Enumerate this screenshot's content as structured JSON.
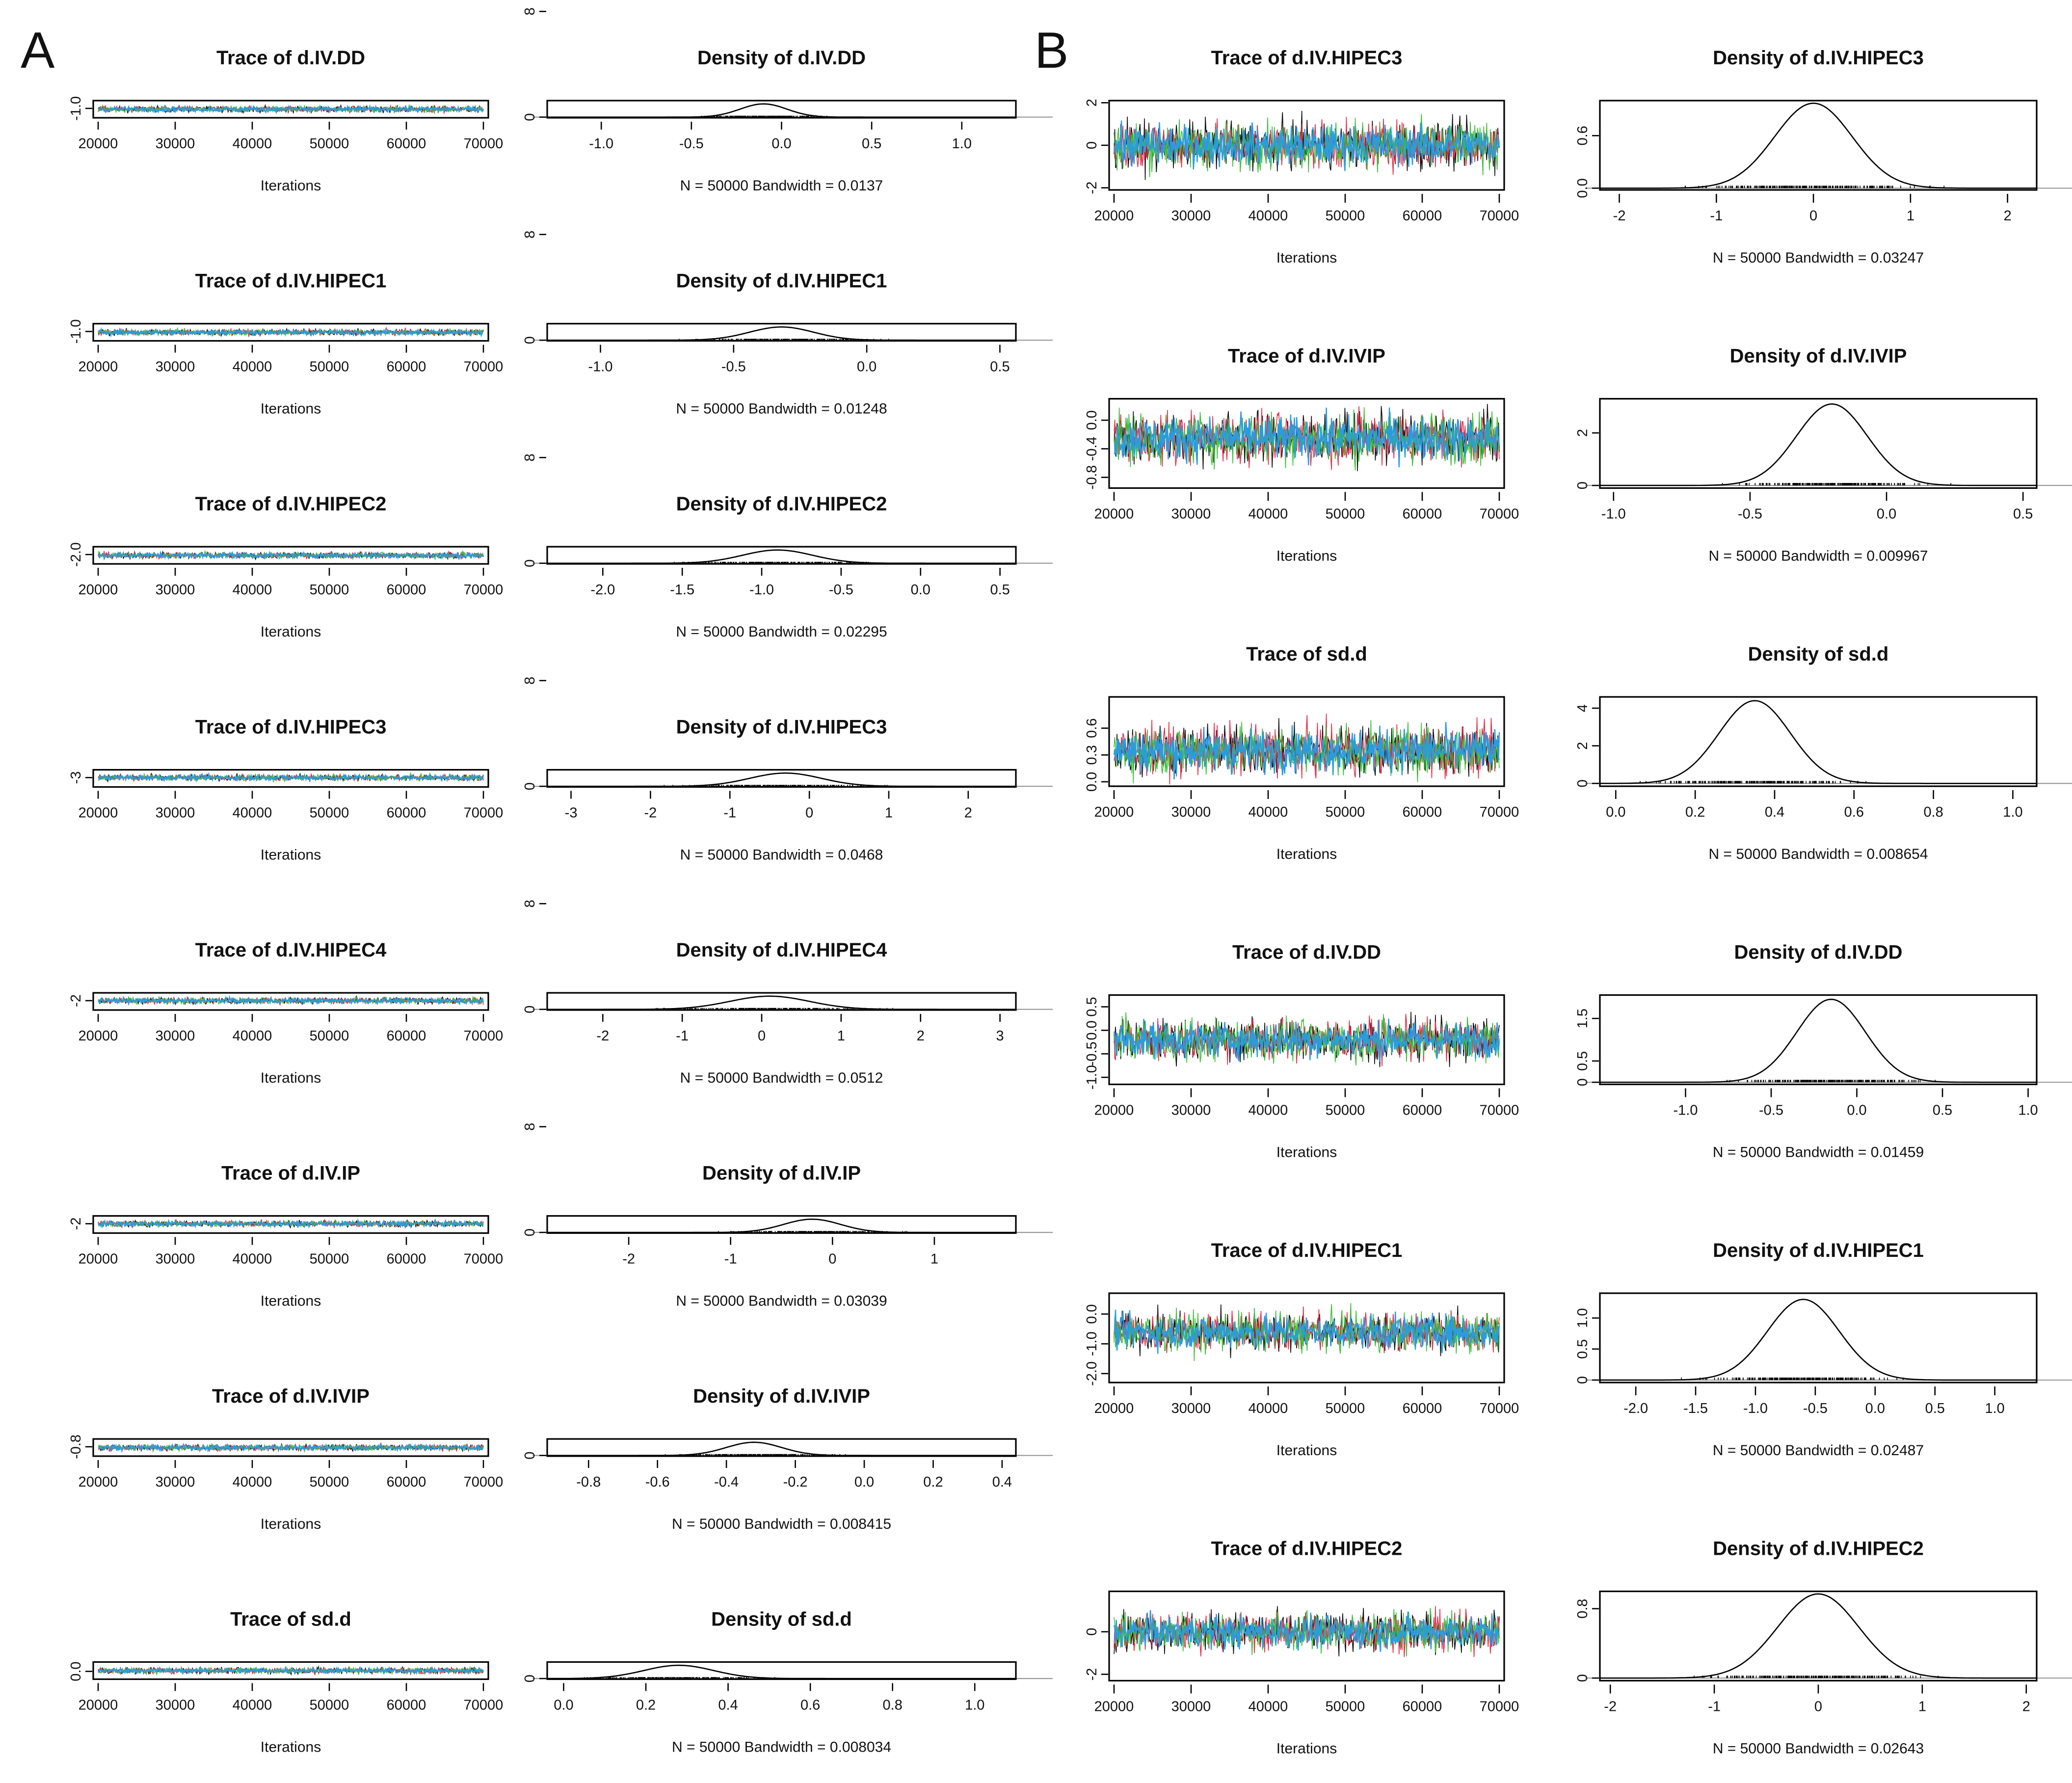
{
  "figure": {
    "panel_labels": [
      "A",
      "B"
    ],
    "x_axis_label_trace": "Iterations",
    "colors": {
      "chain_blue": "#2b9be0",
      "chain_black": "#111111",
      "chain_red": "#e0304a",
      "chain_green": "#3cbf3c",
      "baseline": "#9a9a9a"
    }
  },
  "chart_data": [
    {
      "panel": "A",
      "type": "line",
      "kind": "trace",
      "title": "Trace of d.IV.DD",
      "xlabel": "Iterations",
      "x_ticks": [
        "20000",
        "30000",
        "40000",
        "50000",
        "60000",
        "70000"
      ],
      "x_range": [
        20000,
        70000
      ],
      "y_ticks": [
        "-1.0"
      ],
      "y_range": [
        -1.6,
        -0.5
      ],
      "mean": -1.05,
      "sd": 0.1
    },
    {
      "panel": "A",
      "type": "line",
      "kind": "density",
      "title": "Density of d.IV.DD",
      "summary": "N = 50000   Bandwidth = 0.0137",
      "x_ticks": [
        "-1.0",
        "-0.5",
        "0.0",
        "0.5",
        "1.0"
      ],
      "x_range": [
        -1.3,
        1.3
      ],
      "y_ticks": [
        "0",
        "8"
      ],
      "peak_x": -0.1,
      "sd": 0.13
    },
    {
      "panel": "A",
      "type": "line",
      "kind": "trace",
      "title": "Trace of d.IV.HIPEC1",
      "xlabel": "Iterations",
      "x_ticks": [
        "20000",
        "30000",
        "40000",
        "50000",
        "60000",
        "70000"
      ],
      "x_range": [
        20000,
        70000
      ],
      "y_ticks": [
        "-1.0"
      ],
      "y_range": [
        -1.6,
        -0.5
      ],
      "mean": -1.05,
      "sd": 0.1
    },
    {
      "panel": "A",
      "type": "line",
      "kind": "density",
      "title": "Density of d.IV.HIPEC1",
      "summary": "N = 50000   Bandwidth = 0.01248",
      "x_ticks": [
        "-1.0",
        "-0.5",
        "0.0",
        "0.5"
      ],
      "x_range": [
        -1.2,
        0.56
      ],
      "y_ticks": [
        "0",
        "8"
      ],
      "peak_x": -0.32,
      "sd": 0.12
    },
    {
      "panel": "A",
      "type": "line",
      "kind": "trace",
      "title": "Trace of d.IV.HIPEC2",
      "xlabel": "Iterations",
      "x_ticks": [
        "20000",
        "30000",
        "40000",
        "50000",
        "60000",
        "70000"
      ],
      "x_range": [
        20000,
        70000
      ],
      "y_ticks": [
        "-2.0"
      ],
      "y_range": [
        -2.6,
        -1.5
      ],
      "mean": -2.05,
      "sd": 0.1
    },
    {
      "panel": "A",
      "type": "line",
      "kind": "density",
      "title": "Density of d.IV.HIPEC2",
      "summary": "N = 50000   Bandwidth = 0.02295",
      "x_ticks": [
        "-2.0",
        "-1.5",
        "-1.0",
        "-0.5",
        "0.0",
        "0.5"
      ],
      "x_range": [
        -2.35,
        0.6
      ],
      "y_ticks": [
        "0",
        "8"
      ],
      "peak_x": -0.9,
      "sd": 0.22
    },
    {
      "panel": "A",
      "type": "line",
      "kind": "trace",
      "title": "Trace of d.IV.HIPEC3",
      "xlabel": "Iterations",
      "x_ticks": [
        "20000",
        "30000",
        "40000",
        "50000",
        "60000",
        "70000"
      ],
      "x_range": [
        20000,
        70000
      ],
      "y_ticks": [
        "-3"
      ],
      "y_range": [
        -3.6,
        -2.5
      ],
      "mean": -3.0,
      "sd": 0.1
    },
    {
      "panel": "A",
      "type": "line",
      "kind": "density",
      "title": "Density of d.IV.HIPEC3",
      "summary": "N = 50000   Bandwidth = 0.0468",
      "x_ticks": [
        "-3",
        "-2",
        "-1",
        "0",
        "1",
        "2"
      ],
      "x_range": [
        -3.3,
        2.6
      ],
      "y_ticks": [
        "0",
        "8"
      ],
      "peak_x": -0.3,
      "sd": 0.45
    },
    {
      "panel": "A",
      "type": "line",
      "kind": "trace",
      "title": "Trace of d.IV.HIPEC4",
      "xlabel": "Iterations",
      "x_ticks": [
        "20000",
        "30000",
        "40000",
        "50000",
        "60000",
        "70000"
      ],
      "x_range": [
        20000,
        70000
      ],
      "y_ticks": [
        "-2"
      ],
      "y_range": [
        -2.6,
        -1.5
      ],
      "mean": -2.0,
      "sd": 0.1
    },
    {
      "panel": "A",
      "type": "line",
      "kind": "density",
      "title": "Density of d.IV.HIPEC4",
      "summary": "N = 50000   Bandwidth = 0.0512",
      "x_ticks": [
        "-2",
        "-1",
        "0",
        "1",
        "2",
        "3"
      ],
      "x_range": [
        -2.7,
        3.2
      ],
      "y_ticks": [
        "0",
        "8"
      ],
      "peak_x": 0.1,
      "sd": 0.5
    },
    {
      "panel": "A",
      "type": "line",
      "kind": "trace",
      "title": "Trace of d.IV.IP",
      "xlabel": "Iterations",
      "x_ticks": [
        "20000",
        "30000",
        "40000",
        "50000",
        "60000",
        "70000"
      ],
      "x_range": [
        20000,
        70000
      ],
      "y_ticks": [
        "-2"
      ],
      "y_range": [
        -2.6,
        -1.5
      ],
      "mean": -2.0,
      "sd": 0.1
    },
    {
      "panel": "A",
      "type": "line",
      "kind": "density",
      "title": "Density of d.IV.IP",
      "summary": "N = 50000   Bandwidth = 0.03039",
      "x_ticks": [
        "-2",
        "-1",
        "0",
        "1"
      ],
      "x_range": [
        -2.8,
        1.8
      ],
      "y_ticks": [
        "0",
        "8"
      ],
      "peak_x": -0.2,
      "sd": 0.28
    },
    {
      "panel": "A",
      "type": "line",
      "kind": "trace",
      "title": "Trace of d.IV.IVIP",
      "xlabel": "Iterations",
      "x_ticks": [
        "20000",
        "30000",
        "40000",
        "50000",
        "60000",
        "70000"
      ],
      "x_range": [
        20000,
        70000
      ],
      "y_ticks": [
        "-0.8"
      ],
      "y_range": [
        -1.4,
        -0.3
      ],
      "mean": -0.85,
      "sd": 0.1
    },
    {
      "panel": "A",
      "type": "line",
      "kind": "density",
      "title": "Density of d.IV.IVIP",
      "summary": "N = 50000   Bandwidth = 0.008415",
      "x_ticks": [
        "-0.8",
        "-0.6",
        "-0.4",
        "-0.2",
        "0.0",
        "0.2",
        "0.4"
      ],
      "x_range": [
        -0.92,
        0.44
      ],
      "y_ticks": [
        "0"
      ],
      "peak_x": -0.32,
      "sd": 0.08
    },
    {
      "panel": "A",
      "type": "line",
      "kind": "trace",
      "title": "Trace of sd.d",
      "xlabel": "Iterations",
      "x_ticks": [
        "20000",
        "30000",
        "40000",
        "50000",
        "60000",
        "70000"
      ],
      "x_range": [
        20000,
        70000
      ],
      "y_ticks": [
        "0.0"
      ],
      "y_range": [
        -0.5,
        0.6
      ],
      "mean": 0.05,
      "sd": 0.1
    },
    {
      "panel": "A",
      "type": "line",
      "kind": "density",
      "title": "Density of sd.d",
      "summary": "N = 50000   Bandwidth = 0.008034",
      "x_ticks": [
        "0.0",
        "0.2",
        "0.4",
        "0.6",
        "0.8",
        "1.0"
      ],
      "x_range": [
        -0.04,
        1.1
      ],
      "y_ticks": [
        "0"
      ],
      "peak_x": 0.28,
      "sd": 0.085
    },
    {
      "panel": "B",
      "type": "line",
      "kind": "trace",
      "title": "Trace of d.IV.HIPEC3",
      "xlabel": "Iterations",
      "x_ticks": [
        "20000",
        "30000",
        "40000",
        "50000",
        "60000",
        "70000"
      ],
      "x_range": [
        20000,
        70000
      ],
      "y_ticks": [
        "-2",
        "0",
        "2"
      ],
      "y_range": [
        -2.1,
        2.1
      ],
      "mean": 0.0,
      "sd": 0.55
    },
    {
      "panel": "B",
      "type": "line",
      "kind": "density",
      "title": "Density of d.IV.HIPEC3",
      "summary": "N = 50000   Bandwidth = 0.03247",
      "x_ticks": [
        "-2",
        "-1",
        "0",
        "1",
        "2"
      ],
      "x_range": [
        -2.2,
        2.3
      ],
      "y_ticks": [
        "0.0",
        "0.6"
      ],
      "y_range": [
        -0.02,
        1.0
      ],
      "peak_x": 0.0,
      "sd": 0.4,
      "peak_y": 0.97
    },
    {
      "panel": "B",
      "type": "line",
      "kind": "trace",
      "title": "Trace of d.IV.IVIP",
      "xlabel": "Iterations",
      "x_ticks": [
        "20000",
        "30000",
        "40000",
        "50000",
        "60000",
        "70000"
      ],
      "x_range": [
        20000,
        70000
      ],
      "y_ticks": [
        "-0.8",
        "-0.4",
        "0.0"
      ],
      "y_range": [
        -0.95,
        0.3
      ],
      "mean": -0.25,
      "sd": 0.18
    },
    {
      "panel": "B",
      "type": "line",
      "kind": "density",
      "title": "Density of d.IV.IVIP",
      "summary": "N = 50000   Bandwidth = 0.009967",
      "x_ticks": [
        "-1.0",
        "-0.5",
        "0.0",
        "0.5"
      ],
      "x_range": [
        -1.05,
        0.55
      ],
      "y_ticks": [
        "0",
        "2"
      ],
      "y_range": [
        -0.1,
        3.3
      ],
      "peak_x": -0.2,
      "sd": 0.13,
      "peak_y": 3.1
    },
    {
      "panel": "B",
      "type": "line",
      "kind": "trace",
      "title": "Trace of sd.d",
      "xlabel": "Iterations",
      "x_ticks": [
        "20000",
        "30000",
        "40000",
        "50000",
        "60000",
        "70000"
      ],
      "x_range": [
        20000,
        70000
      ],
      "y_ticks": [
        "0.0",
        "0.3",
        "0.6"
      ],
      "y_range": [
        -0.05,
        0.95
      ],
      "mean": 0.35,
      "sd": 0.14
    },
    {
      "panel": "B",
      "type": "line",
      "kind": "density",
      "title": "Density of sd.d",
      "summary": "N = 50000   Bandwidth = 0.008654",
      "x_ticks": [
        "0.0",
        "0.2",
        "0.4",
        "0.6",
        "0.8",
        "1.0"
      ],
      "x_range": [
        -0.04,
        1.06
      ],
      "y_ticks": [
        "0",
        "2",
        "4"
      ],
      "y_range": [
        -0.15,
        4.6
      ],
      "peak_x": 0.35,
      "sd": 0.09,
      "peak_y": 4.4
    },
    {
      "panel": "B",
      "type": "line",
      "kind": "trace",
      "title": "Trace of d.IV.DD",
      "xlabel": "Iterations",
      "x_ticks": [
        "20000",
        "30000",
        "40000",
        "50000",
        "60000",
        "70000"
      ],
      "x_range": [
        20000,
        70000
      ],
      "y_ticks": [
        "-1.0",
        "-0.5",
        "0.0",
        "0.5"
      ],
      "y_range": [
        -1.15,
        0.75
      ],
      "mean": -0.2,
      "sd": 0.22
    },
    {
      "panel": "B",
      "type": "line",
      "kind": "density",
      "title": "Density of d.IV.DD",
      "summary": "N = 50000   Bandwidth = 0.01459",
      "x_ticks": [
        "-1.0",
        "-0.5",
        "0.0",
        "0.5",
        "1.0"
      ],
      "x_range": [
        -1.5,
        1.05
      ],
      "y_ticks": [
        "0",
        "0.5",
        "1.5"
      ],
      "y_range": [
        -0.05,
        2.05
      ],
      "peak_x": -0.15,
      "sd": 0.2,
      "peak_y": 1.95
    },
    {
      "panel": "B",
      "type": "line",
      "kind": "trace",
      "title": "Trace of d.IV.HIPEC1",
      "xlabel": "Iterations",
      "x_ticks": [
        "20000",
        "30000",
        "40000",
        "50000",
        "60000",
        "70000"
      ],
      "x_range": [
        20000,
        70000
      ],
      "y_ticks": [
        "-2.0",
        "-1.0",
        "0.0"
      ],
      "y_range": [
        -2.3,
        0.7
      ],
      "mean": -0.6,
      "sd": 0.33
    },
    {
      "panel": "B",
      "type": "line",
      "kind": "density",
      "title": "Density of d.IV.HIPEC1",
      "summary": "N = 50000   Bandwidth = 0.02487",
      "x_ticks": [
        "-2.0",
        "-1.5",
        "-1.0",
        "-0.5",
        "0.0",
        "0.5",
        "1.0"
      ],
      "x_range": [
        -2.3,
        1.35
      ],
      "y_ticks": [
        "0",
        "0.5",
        "1.0"
      ],
      "y_range": [
        -0.04,
        1.4
      ],
      "peak_x": -0.6,
      "sd": 0.3,
      "peak_y": 1.3
    },
    {
      "panel": "B",
      "type": "line",
      "kind": "trace",
      "title": "Trace of d.IV.HIPEC2",
      "xlabel": "Iterations",
      "x_ticks": [
        "20000",
        "30000",
        "40000",
        "50000",
        "60000",
        "70000"
      ],
      "x_range": [
        20000,
        70000
      ],
      "y_ticks": [
        "-2",
        "0"
      ],
      "y_range": [
        -2.3,
        1.9
      ],
      "mean": 0.0,
      "sd": 0.45
    },
    {
      "panel": "B",
      "type": "line",
      "kind": "density",
      "title": "Density of d.IV.HIPEC2",
      "summary": "N = 50000   Bandwidth = 0.02643",
      "x_ticks": [
        "-2",
        "-1",
        "0",
        "1",
        "2"
      ],
      "x_range": [
        -2.1,
        2.1
      ],
      "y_ticks": [
        "0",
        "0.8"
      ],
      "y_range": [
        -0.03,
        1.0
      ],
      "peak_x": 0.0,
      "sd": 0.39,
      "peak_y": 0.97
    }
  ]
}
